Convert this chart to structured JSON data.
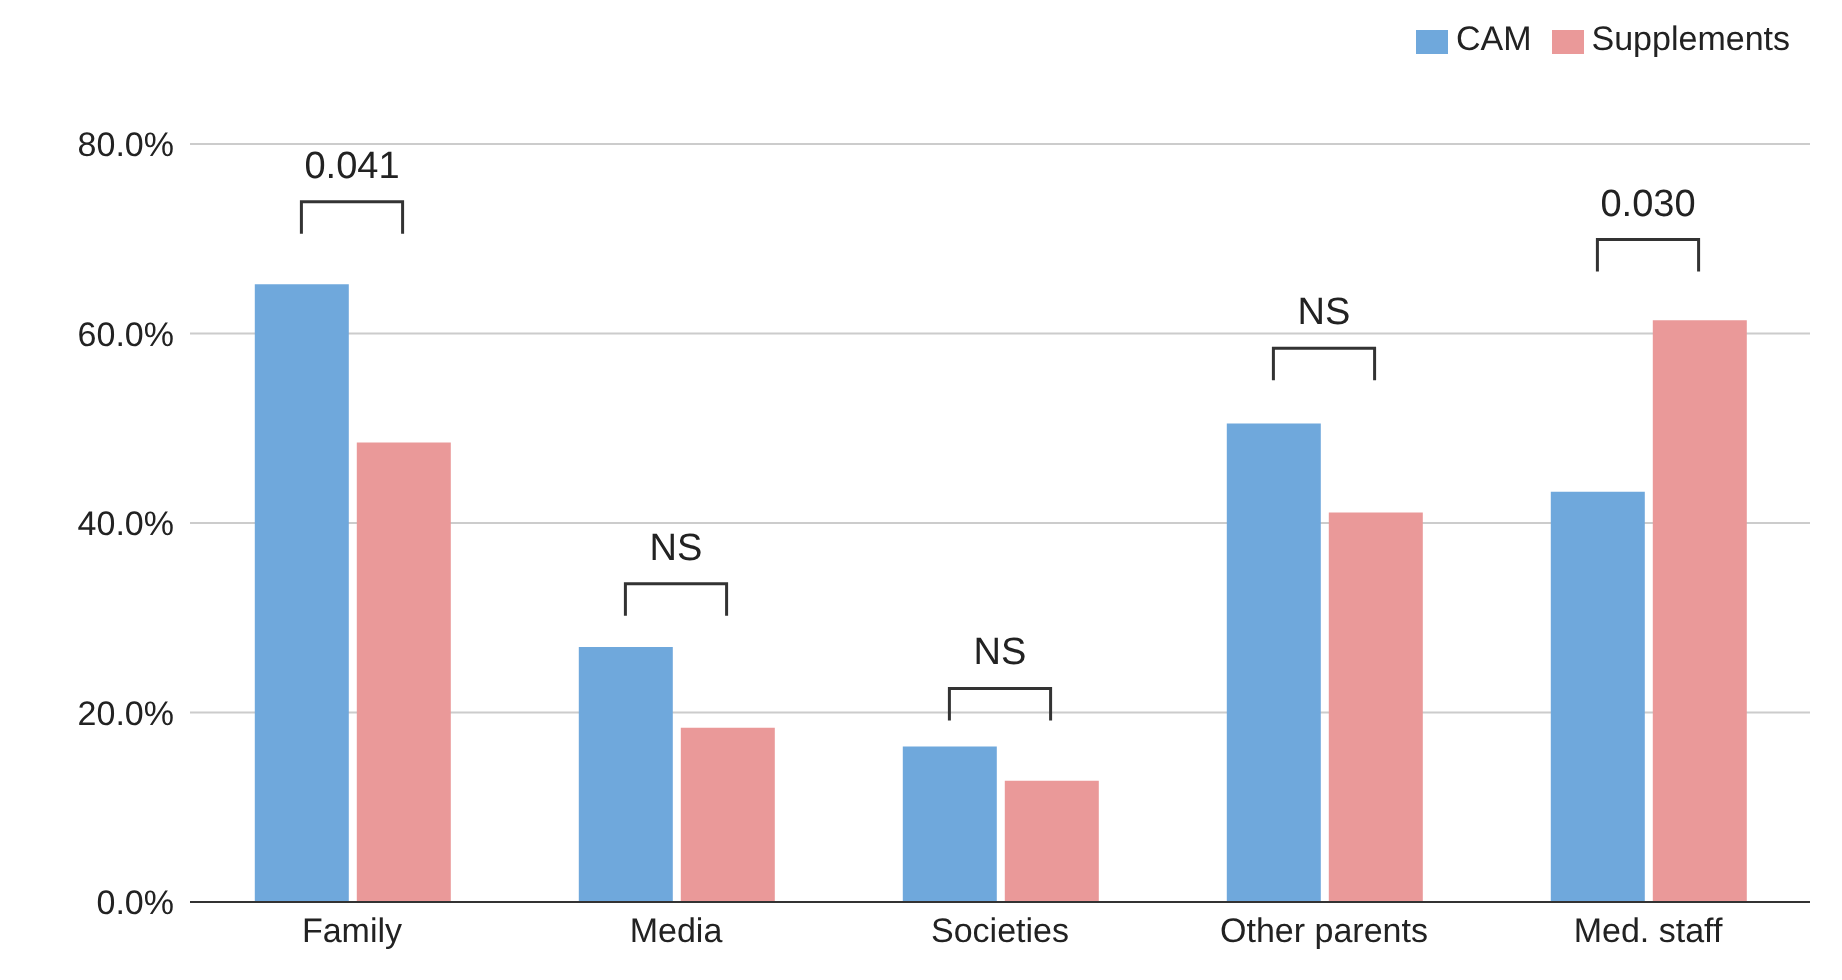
{
  "chart_data": {
    "type": "bar",
    "categories": [
      "Family",
      "Media",
      "Societies",
      "Other parents",
      "Med. staff"
    ],
    "series": [
      {
        "name": "CAM",
        "color": "#6fa8dc",
        "values": [
          65.2,
          26.9,
          16.4,
          50.5,
          43.3
        ]
      },
      {
        "name": "Supplements",
        "color": "#ea9999",
        "values": [
          48.5,
          18.4,
          12.8,
          41.1,
          61.4
        ]
      }
    ],
    "ylim": [
      0,
      80
    ],
    "yticks": [
      {
        "value": 0,
        "label": "0.0%"
      },
      {
        "value": 20,
        "label": "20.0%"
      },
      {
        "value": 40,
        "label": "40.0%"
      },
      {
        "value": 60,
        "label": "60.0%"
      },
      {
        "value": 80,
        "label": "80.0%"
      }
    ],
    "grid": "y",
    "legend": "top right",
    "annotations": [
      "0.041",
      "NS",
      "NS",
      "NS",
      "0.030"
    ]
  }
}
